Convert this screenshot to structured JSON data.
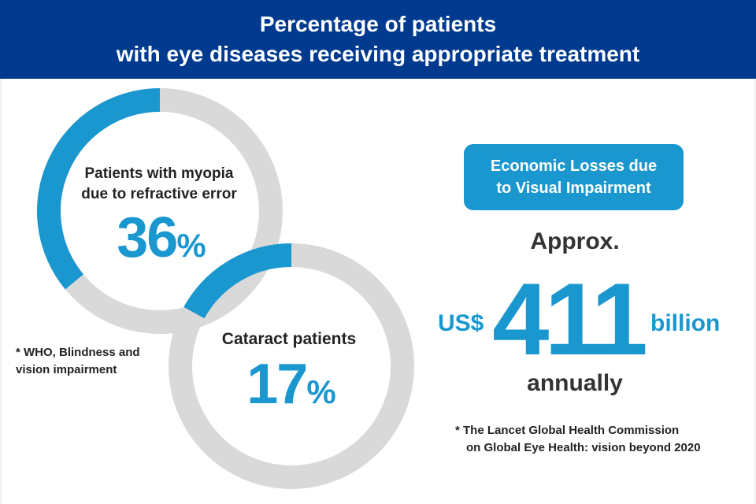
{
  "header": {
    "line1": "Percentage of patients",
    "line2": "with eye diseases receiving appropriate treatment"
  },
  "colors": {
    "header_bg": "#003a8f",
    "accent": "#1a97cf",
    "ring_track": "#d9d9d9"
  },
  "chart_data": [
    {
      "type": "pie",
      "variant": "donut",
      "label_lines": [
        "Patients with myopia",
        "due to refractive error"
      ],
      "value": 36,
      "unit": "%"
    },
    {
      "type": "pie",
      "variant": "donut",
      "label_lines": [
        "Cataract patients"
      ],
      "value": 17,
      "unit": "%"
    }
  ],
  "footnotes": {
    "who": "* WHO, Blindness and vision impairment",
    "lancet_line1": "* The Lancet Global Health Commission",
    "lancet_line2": "on Global Eye Health: vision beyond 2020"
  },
  "economic": {
    "badge_line1": "Economic Losses due",
    "badge_line2": "to Visual Impairment",
    "approx": "Approx.",
    "currency": "US$",
    "amount": "411",
    "unit": "billion",
    "period": "annually"
  }
}
